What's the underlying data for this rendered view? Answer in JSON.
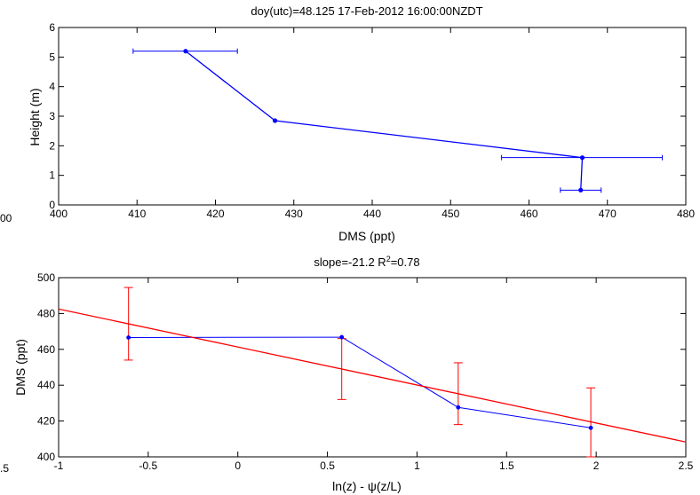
{
  "chart_data": [
    {
      "type": "line",
      "title": "doy(utc)=48.125   17-Feb-2012 16:00:00NZDT",
      "xlabel": "DMS (ppt)",
      "ylabel": "Height (m)",
      "xlim": [
        400,
        480
      ],
      "ylim": [
        0,
        6
      ],
      "xticks": [
        400,
        410,
        420,
        430,
        440,
        450,
        460,
        470,
        480
      ],
      "yticks": [
        0,
        1,
        2,
        3,
        4,
        5,
        6
      ],
      "grid": false,
      "clipped_left_tick": "00",
      "series": [
        {
          "color": "#0000ff",
          "points": [
            {
              "x": 416.2,
              "y": 5.2,
              "xerr": [
                409.5,
                422.8
              ]
            },
            {
              "x": 427.6,
              "y": 2.85
            },
            {
              "x": 466.8,
              "y": 1.6,
              "xerr": [
                456.5,
                477.0
              ]
            },
            {
              "x": 466.6,
              "y": 0.5,
              "xerr": [
                464.0,
                469.2
              ]
            }
          ]
        }
      ]
    },
    {
      "type": "line",
      "title": "slope=-21.2  R",
      "title_sup": "2",
      "title_tail": "=0.78",
      "xlabel": "ln(z) - ψ(z/L)",
      "ylabel": "DMS  (ppt)",
      "xlim": [
        -1,
        2.5
      ],
      "ylim": [
        400,
        500
      ],
      "xticks": [
        "-1",
        "-0.5",
        "0",
        "0.5",
        "1",
        "1.5",
        "2",
        "2.5"
      ],
      "yticks": [
        400,
        420,
        440,
        460,
        480,
        500
      ],
      "grid": false,
      "clipped_left_tick": ".5",
      "series": [
        {
          "color": "#0000ff",
          "points": [
            {
              "x": -0.61,
              "y": 466.6
            },
            {
              "x": 0.58,
              "y": 466.8
            },
            {
              "x": 1.23,
              "y": 427.6
            },
            {
              "x": 1.97,
              "y": 416.2
            }
          ]
        },
        {
          "color": "#ff0000",
          "errorbars": [
            {
              "x": -0.61,
              "low": 454,
              "high": 494.5
            },
            {
              "x": 0.58,
              "low": 432,
              "high": 466
            },
            {
              "x": 1.23,
              "low": 418,
              "high": 452.5
            },
            {
              "x": 1.97,
              "low": 400,
              "high": 438.5
            }
          ]
        },
        {
          "color": "#ff0000",
          "fit": {
            "x": [
              -1,
              2.5
            ],
            "y": [
              482.5,
              408.3
            ]
          }
        }
      ]
    }
  ]
}
